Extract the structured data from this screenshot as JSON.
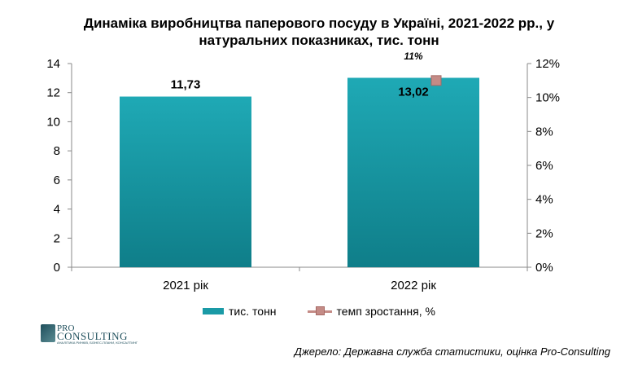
{
  "title": {
    "line1": "Динаміка виробництва паперового посуду в Україні, 2021-2022 рр., у",
    "line2": "натуральних показниках, тис. тонн"
  },
  "chart_data": {
    "type": "bar",
    "categories": [
      "2021 рік",
      "2022 рік"
    ],
    "series": [
      {
        "name": "тис. тонн",
        "type": "bar",
        "axis": "left",
        "values": [
          11.73,
          13.02
        ],
        "labels": [
          "11,73",
          "13,02"
        ],
        "color": "#1a9aa6"
      },
      {
        "name": "темп зростання, %",
        "type": "line",
        "axis": "right",
        "values": [
          null,
          11
        ],
        "labels": [
          "",
          "11%"
        ],
        "color": "#c48b86"
      }
    ],
    "y_left": {
      "min": 0,
      "max": 14,
      "ticks": [
        "0",
        "2",
        "4",
        "6",
        "8",
        "10",
        "12",
        "14"
      ]
    },
    "y_right": {
      "min": 0,
      "max": 12,
      "ticks": [
        "0%",
        "2%",
        "4%",
        "6%",
        "8%",
        "10%",
        "12%"
      ]
    },
    "grid": false,
    "legend_position": "bottom"
  },
  "legend": {
    "bar_label": "тис. тонн",
    "line_label": "темп зростання, %"
  },
  "logo": {
    "line1": "PRO",
    "line2": "CONSULTING",
    "tagline": "АНАЛІТИКА РИНКІВ, БІЗНЕС-ПЛАНИ, КОНСАЛТИНГ"
  },
  "source": "Джерело: Державна служба статистики, оцінка Pro-Consulting"
}
